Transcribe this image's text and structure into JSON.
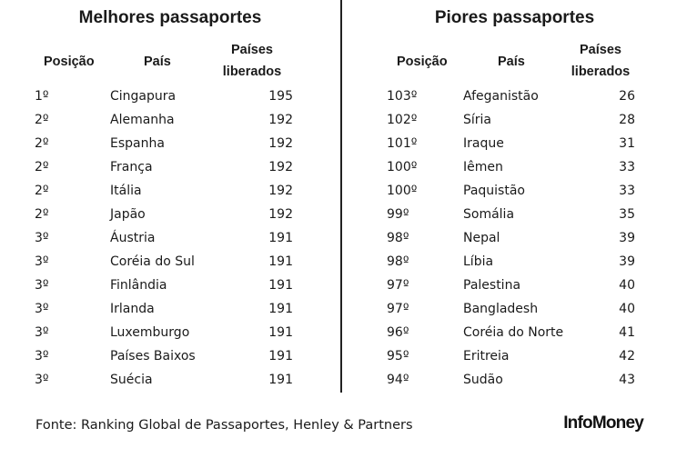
{
  "best": {
    "title": "Melhores passaportes",
    "headers": {
      "position": "Posição",
      "country": "País",
      "count_line1": "Países",
      "count_line2": "liberados"
    },
    "rows": [
      {
        "position": "1º",
        "country": "Cingapura",
        "count": "195"
      },
      {
        "position": "2º",
        "country": "Alemanha",
        "count": "192"
      },
      {
        "position": "2º",
        "country": "Espanha",
        "count": "192"
      },
      {
        "position": "2º",
        "country": "França",
        "count": "192"
      },
      {
        "position": "2º",
        "country": "Itália",
        "count": "192"
      },
      {
        "position": "2º",
        "country": "Japão",
        "count": "192"
      },
      {
        "position": "3º",
        "country": "Áustria",
        "count": "191"
      },
      {
        "position": "3º",
        "country": "Coréia do Sul",
        "count": "191"
      },
      {
        "position": "3º",
        "country": "Finlândia",
        "count": "191"
      },
      {
        "position": "3º",
        "country": "Irlanda",
        "count": "191"
      },
      {
        "position": "3º",
        "country": "Luxemburgo",
        "count": "191"
      },
      {
        "position": "3º",
        "country": "Países Baixos",
        "count": "191"
      },
      {
        "position": "3º",
        "country": "Suécia",
        "count": "191"
      }
    ]
  },
  "worst": {
    "title": "Piores passaportes",
    "headers": {
      "position": "Posição",
      "country": "País",
      "count_line1": "Países",
      "count_line2": "liberados"
    },
    "rows": [
      {
        "position": "103º",
        "country": "Afeganistão",
        "count": "26"
      },
      {
        "position": "102º",
        "country": "Síria",
        "count": "28"
      },
      {
        "position": "101º",
        "country": "Iraque",
        "count": "31"
      },
      {
        "position": "100º",
        "country": "Iêmen",
        "count": "33"
      },
      {
        "position": "100º",
        "country": "Paquistão",
        "count": "33"
      },
      {
        "position": "99º",
        "country": "Somália",
        "count": "35"
      },
      {
        "position": "98º",
        "country": "Nepal",
        "count": "39"
      },
      {
        "position": "98º",
        "country": "Líbia",
        "count": "39"
      },
      {
        "position": "97º",
        "country": "Palestina",
        "count": "40"
      },
      {
        "position": "97º",
        "country": "Bangladesh",
        "count": "40"
      },
      {
        "position": "96º",
        "country": "Coréia do Norte",
        "count": "41"
      },
      {
        "position": "95º",
        "country": "Eritreia",
        "count": "42"
      },
      {
        "position": "94º",
        "country": "Sudão",
        "count": "43"
      }
    ]
  },
  "footer": {
    "source": "Fonte: Ranking Global de Passaportes, Henley & Partners",
    "brand": "InfoMoney"
  }
}
